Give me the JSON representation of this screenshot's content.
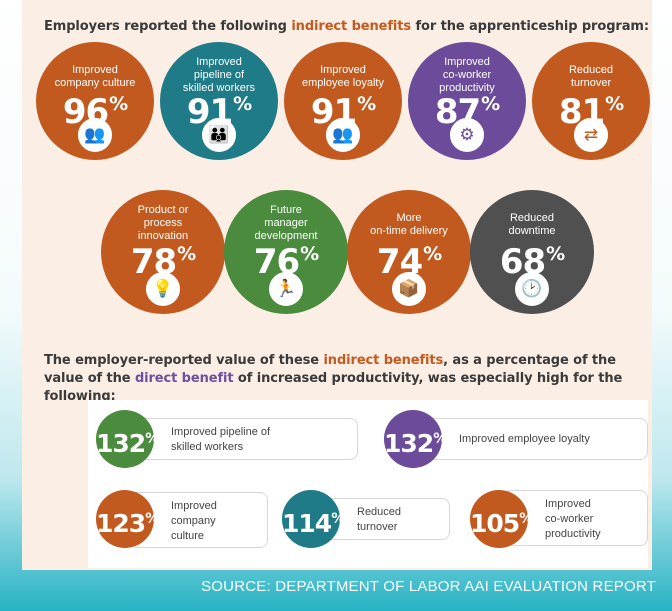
{
  "header": {
    "title_pre": "Employers reported the following ",
    "title_highlight": "indirect benefits",
    "title_post": " for the apprenticeship program:"
  },
  "colors": {
    "orange": "#c25a1f",
    "teal": "#1f7b87",
    "purple": "#6b4b9a",
    "green": "#4a8b3d",
    "gray": "#505050"
  },
  "chart_data": [
    {
      "type": "bar",
      "categories": [
        "Improved company culture",
        "Improved pipeline of skilled workers",
        "Improved employee loyalty",
        "Improved co-worker productivity",
        "Reduced turnover",
        "Product or process innovation",
        "Future manager development",
        "More on-time delivery",
        "Reduced downtime"
      ],
      "values": [
        96,
        91,
        91,
        87,
        81,
        78,
        76,
        74,
        68
      ],
      "unit": "%"
    },
    {
      "type": "bar",
      "categories": [
        "Improved pipeline of skilled workers",
        "Improved employee loyalty",
        "Improved company culture",
        "Reduced turnover",
        "Improved co-worker productivity"
      ],
      "values": [
        132,
        132,
        123,
        114,
        105
      ],
      "unit": "%"
    }
  ],
  "benefits": [
    {
      "label": "Improved company culture",
      "value": "96",
      "unit": "%",
      "color": "#c25a1f",
      "icon": "meeting-icon",
      "glyph": "👥"
    },
    {
      "label": "Improved pipeline of skilled workers",
      "value": "91",
      "unit": "%",
      "color": "#1f7b87",
      "icon": "group-icon",
      "glyph": "👪"
    },
    {
      "label": "Improved employee loyalty",
      "value": "91",
      "unit": "%",
      "color": "#c25a1f",
      "icon": "team-icon",
      "glyph": "👥"
    },
    {
      "label": "Improved co-worker productivity",
      "value": "87",
      "unit": "%",
      "color": "#6b4b9a",
      "icon": "gear-icon",
      "glyph": "⚙"
    },
    {
      "label": "Reduced turnover",
      "value": "81",
      "unit": "%",
      "color": "#c25a1f",
      "icon": "person-transfer-icon",
      "glyph": "⇄"
    },
    {
      "label": "Product or process innovation",
      "value": "78",
      "unit": "%",
      "color": "#c25a1f",
      "icon": "lightbulb-icon",
      "glyph": "💡"
    },
    {
      "label": "Future manager development",
      "value": "76",
      "unit": "%",
      "color": "#4a8b3d",
      "icon": "climbing-person-icon",
      "glyph": "🏃"
    },
    {
      "label": "More on-time delivery",
      "value": "74",
      "unit": "%",
      "color": "#c25a1f",
      "icon": "delivery-box-icon",
      "glyph": "📦"
    },
    {
      "label": "Reduced downtime",
      "value": "68",
      "unit": "%",
      "color": "#505050",
      "icon": "clock-icon",
      "glyph": "🕑"
    }
  ],
  "section2": {
    "pre": "The employer-reported value of these ",
    "highlight1": "indirect benefits",
    "mid": ", as a percentage of the value of the ",
    "highlight2": "direct benefit",
    "post": " of increased productivity, was especially high for the following:"
  },
  "values": [
    {
      "value": "132",
      "unit": "%",
      "label": "Improved pipeline of skilled workers",
      "color": "#4a8b3d"
    },
    {
      "value": "132",
      "unit": "%",
      "label": "Improved employee loyalty",
      "color": "#6b4b9a"
    },
    {
      "value": "123",
      "unit": "%",
      "label": "Improved company culture",
      "color": "#c25a1f"
    },
    {
      "value": "114",
      "unit": "%",
      "label": "Reduced turnover",
      "color": "#1f7b87"
    },
    {
      "value": "105",
      "unit": "%",
      "label": "Improved co-worker productivity",
      "color": "#c25a1f"
    }
  ],
  "footer": {
    "source": "SOURCE: DEPARTMENT OF LABOR AAI EVALUATION REPORT"
  }
}
